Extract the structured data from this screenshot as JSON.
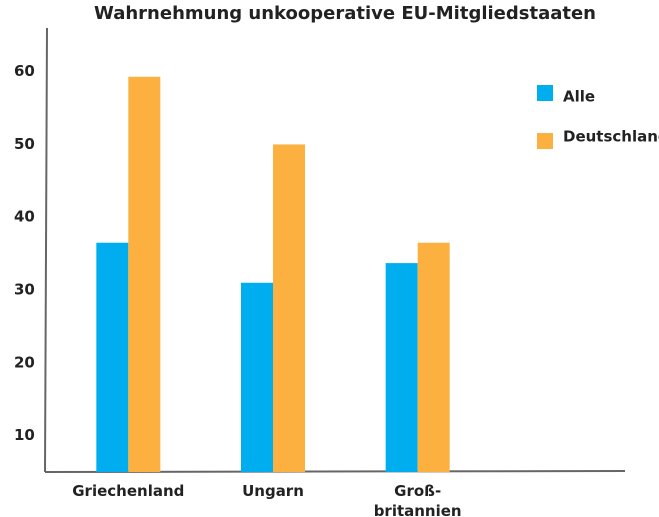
{
  "chart_data": {
    "type": "bar",
    "title": "Wahrnehmung unkooperative EU-Mitgliedstaaten",
    "categories": [
      "Griechenland",
      "Ungarn",
      "Groß-\nbritannien"
    ],
    "series": [
      {
        "name": "Alle",
        "color": "#00aeef",
        "values": [
          36.5,
          31,
          33.7
        ]
      },
      {
        "name": "Deutschland",
        "color": "#fbb040",
        "values": [
          59.3,
          50,
          36.5
        ]
      }
    ],
    "ylim": [
      5,
      66
    ],
    "yticks": [
      10,
      20,
      30,
      40,
      50,
      60
    ],
    "grid": false,
    "legend": "right"
  }
}
